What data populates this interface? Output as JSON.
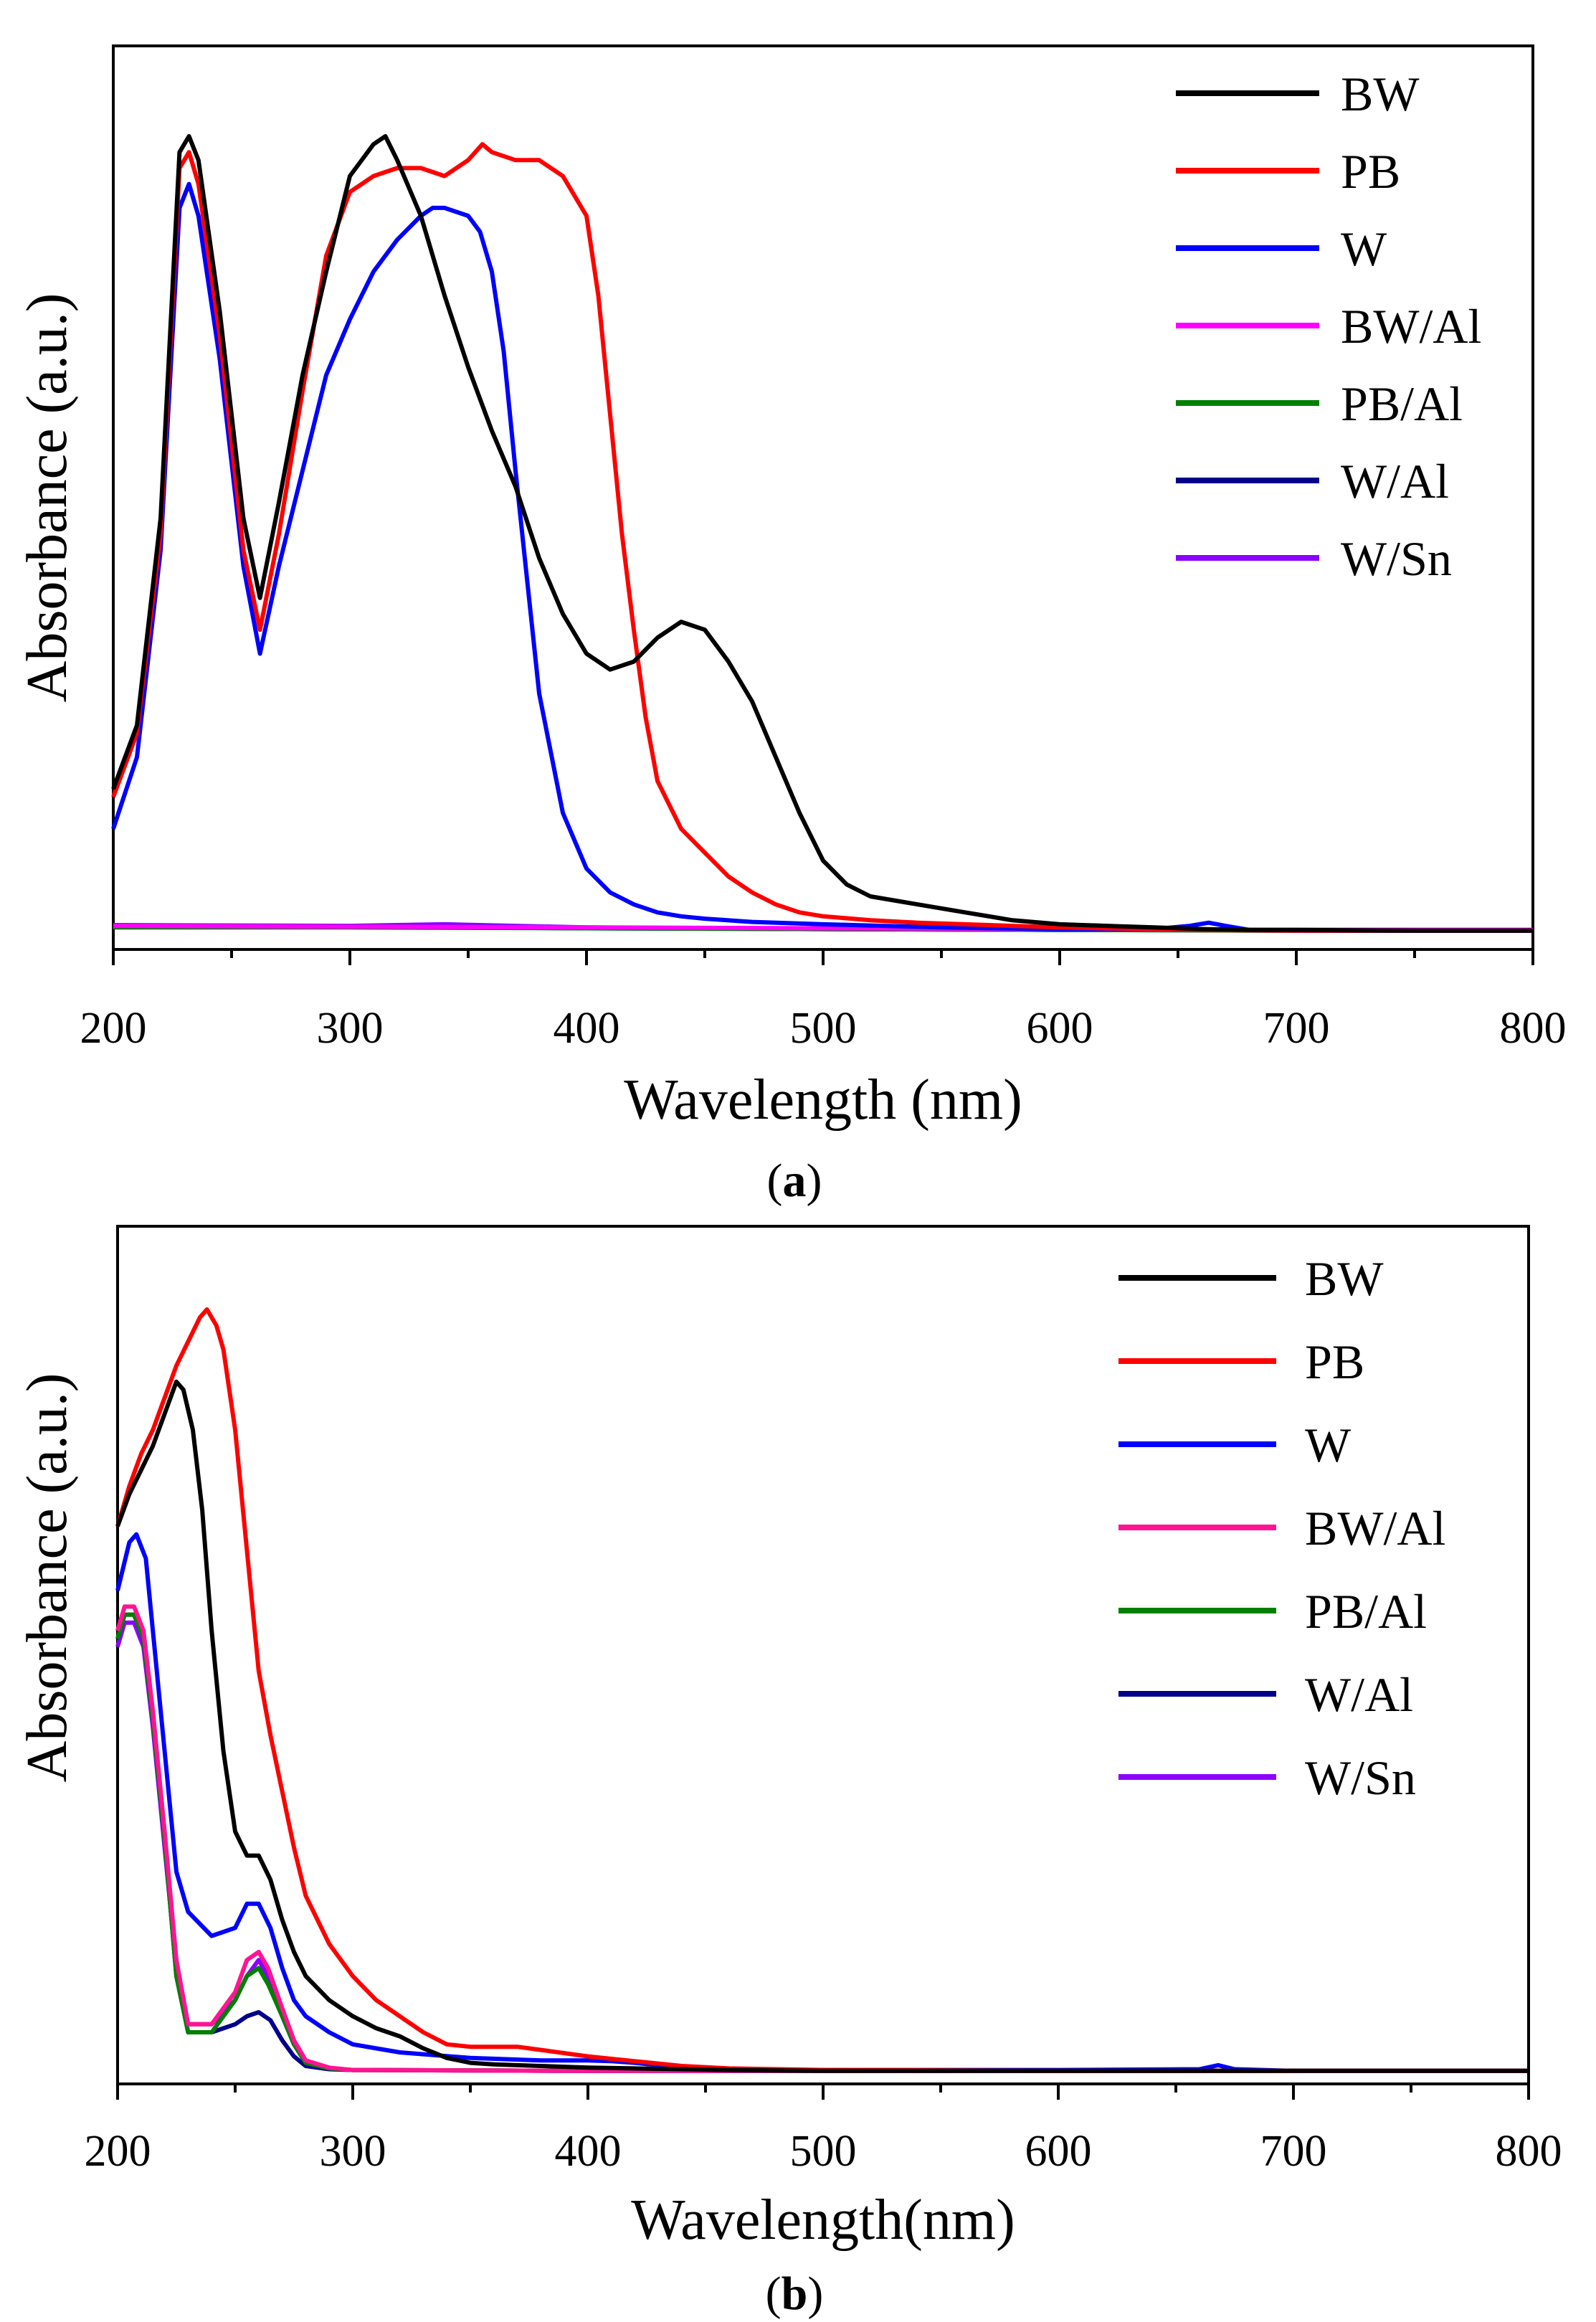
{
  "chart_data": [
    {
      "type": "line",
      "panel": "a",
      "panel_label_open": "(",
      "panel_label_letter": "a",
      "panel_label_close": ")",
      "xlabel": "Wavelength (nm)",
      "ylabel": "Absorbance (a.u.)",
      "xlim": [
        200,
        800
      ],
      "ylim": [
        0,
        1
      ],
      "xticks": [
        "200",
        "300",
        "400",
        "500",
        "600",
        "700",
        "800"
      ],
      "legend_position": "top-right",
      "series": [
        {
          "name": "BW",
          "color": "#000000",
          "x": [
            200,
            210,
            220,
            228,
            232,
            236,
            245,
            255,
            262,
            270,
            280,
            290,
            300,
            310,
            315,
            320,
            330,
            340,
            350,
            360,
            370,
            380,
            390,
            400,
            410,
            420,
            430,
            440,
            450,
            460,
            470,
            480,
            490,
            500,
            510,
            520,
            540,
            560,
            580,
            600,
            620,
            640,
            660,
            680,
            700,
            750,
            800
          ],
          "y": [
            0.18,
            0.26,
            0.52,
            0.98,
            1.0,
            0.97,
            0.78,
            0.52,
            0.42,
            0.54,
            0.7,
            0.83,
            0.95,
            0.99,
            1.0,
            0.97,
            0.9,
            0.8,
            0.71,
            0.63,
            0.56,
            0.47,
            0.4,
            0.35,
            0.33,
            0.34,
            0.37,
            0.39,
            0.38,
            0.34,
            0.29,
            0.22,
            0.15,
            0.09,
            0.06,
            0.045,
            0.035,
            0.025,
            0.015,
            0.01,
            0.008,
            0.006,
            0.004,
            0.003,
            0.003,
            0.002,
            0.002
          ]
        },
        {
          "name": "PB",
          "color": "#ff0000",
          "x": [
            200,
            210,
            220,
            228,
            232,
            236,
            245,
            255,
            262,
            270,
            280,
            290,
            300,
            310,
            320,
            330,
            340,
            350,
            356,
            360,
            370,
            380,
            390,
            400,
            405,
            410,
            415,
            420,
            425,
            430,
            440,
            450,
            460,
            470,
            480,
            490,
            500,
            520,
            540,
            560,
            580,
            600,
            620,
            640,
            660,
            700,
            800
          ],
          "y": [
            0.17,
            0.25,
            0.5,
            0.96,
            0.98,
            0.94,
            0.75,
            0.48,
            0.38,
            0.5,
            0.68,
            0.85,
            0.93,
            0.95,
            0.96,
            0.96,
            0.95,
            0.97,
            0.99,
            0.98,
            0.97,
            0.97,
            0.95,
            0.9,
            0.8,
            0.65,
            0.5,
            0.38,
            0.27,
            0.19,
            0.13,
            0.1,
            0.07,
            0.05,
            0.035,
            0.025,
            0.02,
            0.015,
            0.012,
            0.01,
            0.008,
            0.006,
            0.005,
            0.004,
            0.003,
            0.002,
            0.002
          ]
        },
        {
          "name": "W",
          "color": "#0000ff",
          "x": [
            200,
            210,
            220,
            228,
            232,
            236,
            245,
            255,
            262,
            270,
            280,
            290,
            300,
            310,
            320,
            330,
            335,
            340,
            350,
            355,
            360,
            365,
            370,
            375,
            380,
            390,
            400,
            410,
            420,
            430,
            440,
            450,
            470,
            500,
            550,
            600,
            640,
            655,
            663,
            670,
            680,
            700,
            800
          ],
          "y": [
            0.13,
            0.22,
            0.48,
            0.91,
            0.94,
            0.9,
            0.72,
            0.46,
            0.35,
            0.46,
            0.58,
            0.7,
            0.77,
            0.83,
            0.87,
            0.9,
            0.91,
            0.91,
            0.9,
            0.88,
            0.83,
            0.73,
            0.58,
            0.44,
            0.3,
            0.15,
            0.08,
            0.05,
            0.035,
            0.025,
            0.02,
            0.017,
            0.013,
            0.01,
            0.006,
            0.004,
            0.004,
            0.008,
            0.012,
            0.008,
            0.003,
            0.002,
            0.002
          ]
        },
        {
          "name": "BW/Al",
          "color": "#ff00ff",
          "x": [
            200,
            300,
            400,
            500,
            600,
            700,
            800
          ],
          "y": [
            0.008,
            0.007,
            0.006,
            0.005,
            0.004,
            0.003,
            0.003
          ]
        },
        {
          "name": "PB/Al",
          "color": "#008000",
          "x": [
            200,
            300,
            400,
            500,
            600,
            700,
            800
          ],
          "y": [
            0.006,
            0.006,
            0.005,
            0.004,
            0.003,
            0.002,
            0.002
          ]
        },
        {
          "name": "W/Al",
          "color": "#00008b",
          "x": [
            200,
            300,
            400,
            500,
            600,
            700,
            800
          ],
          "y": [
            0.007,
            0.007,
            0.005,
            0.004,
            0.003,
            0.003,
            0.003
          ]
        },
        {
          "name": "W/Sn",
          "color": "#8b00ff",
          "x": [
            200,
            300,
            340,
            400,
            500,
            600,
            700,
            800
          ],
          "y": [
            0.009,
            0.008,
            0.01,
            0.006,
            0.004,
            0.003,
            0.002,
            0.002
          ]
        }
      ]
    },
    {
      "type": "line",
      "panel": "b",
      "panel_label_open": "(",
      "panel_label_letter": "b",
      "panel_label_close": ")",
      "xlabel": "Wavelength(nm)",
      "ylabel": "Absorbance (a.u.)",
      "xlim": [
        200,
        800
      ],
      "ylim": [
        0,
        1
      ],
      "xticks": [
        "200",
        "300",
        "400",
        "500",
        "600",
        "700",
        "800"
      ],
      "legend_position": "top-right",
      "series": [
        {
          "name": "BW",
          "color": "#000000",
          "x": [
            200,
            205,
            210,
            215,
            220,
            225,
            228,
            232,
            236,
            240,
            245,
            250,
            255,
            260,
            265,
            270,
            275,
            280,
            290,
            300,
            310,
            320,
            330,
            340,
            350,
            360,
            380,
            400,
            420,
            440,
            460,
            500,
            600,
            700,
            800
          ],
          "y": [
            0.68,
            0.72,
            0.75,
            0.78,
            0.82,
            0.86,
            0.85,
            0.8,
            0.7,
            0.55,
            0.4,
            0.3,
            0.27,
            0.27,
            0.24,
            0.19,
            0.15,
            0.12,
            0.09,
            0.07,
            0.055,
            0.045,
            0.03,
            0.018,
            0.012,
            0.01,
            0.008,
            0.006,
            0.005,
            0.004,
            0.003,
            0.002,
            0.002,
            0.002,
            0.002
          ]
        },
        {
          "name": "PB",
          "color": "#ff0000",
          "x": [
            200,
            205,
            210,
            215,
            220,
            225,
            230,
            235,
            238,
            242,
            245,
            250,
            255,
            260,
            265,
            270,
            275,
            280,
            290,
            300,
            310,
            320,
            330,
            340,
            350,
            360,
            370,
            380,
            400,
            420,
            440,
            460,
            500,
            600,
            700,
            800
          ],
          "y": [
            0.68,
            0.73,
            0.77,
            0.8,
            0.84,
            0.88,
            0.91,
            0.94,
            0.95,
            0.93,
            0.9,
            0.8,
            0.65,
            0.5,
            0.42,
            0.35,
            0.28,
            0.22,
            0.16,
            0.12,
            0.09,
            0.07,
            0.05,
            0.035,
            0.032,
            0.032,
            0.032,
            0.028,
            0.02,
            0.014,
            0.008,
            0.005,
            0.003,
            0.002,
            0.002,
            0.002
          ]
        },
        {
          "name": "W",
          "color": "#0000ff",
          "x": [
            200,
            205,
            208,
            212,
            215,
            220,
            225,
            230,
            240,
            250,
            255,
            260,
            265,
            270,
            275,
            280,
            290,
            300,
            320,
            350,
            380,
            400,
            410,
            420,
            440,
            460,
            500,
            600,
            660,
            668,
            675,
            700,
            800
          ],
          "y": [
            0.6,
            0.66,
            0.67,
            0.64,
            0.55,
            0.4,
            0.25,
            0.2,
            0.17,
            0.18,
            0.21,
            0.21,
            0.18,
            0.13,
            0.09,
            0.07,
            0.05,
            0.035,
            0.025,
            0.018,
            0.015,
            0.015,
            0.014,
            0.012,
            0.006,
            0.004,
            0.003,
            0.003,
            0.004,
            0.009,
            0.004,
            0.002,
            0.002
          ]
        },
        {
          "name": "BW/Al",
          "color": "#ff1493",
          "x": [
            200,
            203,
            207,
            211,
            215,
            220,
            225,
            230,
            240,
            250,
            255,
            260,
            264,
            270,
            275,
            280,
            290,
            300,
            400,
            800
          ],
          "y": [
            0.55,
            0.58,
            0.58,
            0.55,
            0.45,
            0.3,
            0.14,
            0.06,
            0.06,
            0.1,
            0.14,
            0.15,
            0.13,
            0.08,
            0.04,
            0.015,
            0.006,
            0.003,
            0.002,
            0.002
          ]
        },
        {
          "name": "PB/Al",
          "color": "#008000",
          "x": [
            200,
            203,
            207,
            211,
            215,
            220,
            225,
            230,
            240,
            250,
            255,
            260,
            264,
            270,
            275,
            280,
            290,
            300,
            400,
            800
          ],
          "y": [
            0.54,
            0.57,
            0.57,
            0.54,
            0.44,
            0.29,
            0.12,
            0.05,
            0.05,
            0.09,
            0.12,
            0.13,
            0.11,
            0.07,
            0.035,
            0.012,
            0.005,
            0.003,
            0.002,
            0.002
          ]
        },
        {
          "name": "W/Al",
          "color": "#00008b",
          "x": [
            200,
            203,
            207,
            211,
            215,
            220,
            225,
            230,
            240,
            250,
            255,
            260,
            265,
            270,
            275,
            280,
            290,
            300,
            400,
            800
          ],
          "y": [
            0.54,
            0.57,
            0.57,
            0.54,
            0.44,
            0.29,
            0.12,
            0.05,
            0.05,
            0.06,
            0.07,
            0.075,
            0.065,
            0.04,
            0.02,
            0.008,
            0.004,
            0.003,
            0.002,
            0.002
          ]
        },
        {
          "name": "W/Sn",
          "color": "#8b00ff",
          "x": [
            200,
            203,
            207,
            211,
            215,
            220,
            225,
            230,
            240,
            250,
            255,
            260,
            264,
            270,
            275,
            280,
            290,
            300,
            400,
            800
          ],
          "y": [
            0.53,
            0.56,
            0.56,
            0.53,
            0.43,
            0.28,
            0.13,
            0.06,
            0.06,
            0.09,
            0.12,
            0.14,
            0.12,
            0.07,
            0.035,
            0.012,
            0.005,
            0.003,
            0.002,
            0.002
          ]
        }
      ]
    }
  ]
}
